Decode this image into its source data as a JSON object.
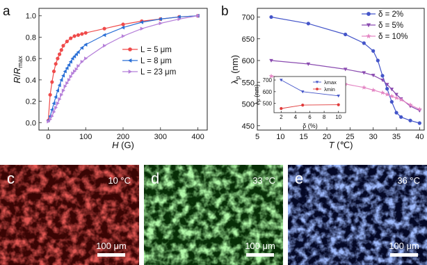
{
  "panels": {
    "a": "a",
    "b": "b",
    "c": "c",
    "d": "d",
    "e": "e"
  },
  "micrographs": [
    {
      "letter": "c",
      "temperature": "10 °C",
      "scale_bar": "100 μm",
      "color": "#c62828"
    },
    {
      "letter": "d",
      "temperature": "33 °C",
      "scale_bar": "100 μm",
      "color": "#2e9d2e"
    },
    {
      "letter": "e",
      "temperature": "36 °C",
      "scale_bar": "100 μm",
      "color": "#2f43b8"
    }
  ],
  "chart_data": [
    {
      "type": "line",
      "panel": "a",
      "xlabel": "H (G)",
      "ylabel": "R/Rmax",
      "xlim": [
        -25,
        425
      ],
      "ylim": [
        -0.07,
        1.07
      ],
      "xticks": [
        0,
        100,
        200,
        300,
        400
      ],
      "yticks": [
        0.0,
        0.2,
        0.4,
        0.6,
        0.8,
        1.0
      ],
      "xtick_labels": [
        "0",
        "100",
        "200",
        "300",
        "400"
      ],
      "ytick_labels": [
        "0.0",
        "0.2",
        "0.4",
        "0.6",
        "0.8",
        "1.0"
      ],
      "legend_position": "right",
      "series": [
        {
          "name": "L = 5 μm",
          "color": "#ef4a4a",
          "marker": "circle",
          "x": [
            0,
            5,
            10,
            15,
            20,
            25,
            30,
            35,
            40,
            50,
            60,
            70,
            80,
            90,
            100,
            150,
            200,
            250,
            300,
            350,
            400
          ],
          "y": [
            0.02,
            0.26,
            0.38,
            0.48,
            0.55,
            0.6,
            0.64,
            0.68,
            0.72,
            0.76,
            0.79,
            0.81,
            0.82,
            0.83,
            0.84,
            0.88,
            0.92,
            0.95,
            0.97,
            0.99,
            1.0
          ]
        },
        {
          "name": "L = 8 μm",
          "color": "#2a6fd6",
          "marker": "triangle-left",
          "x": [
            0,
            5,
            10,
            15,
            20,
            25,
            30,
            35,
            40,
            45,
            50,
            55,
            60,
            65,
            70,
            75,
            80,
            90,
            100,
            150,
            200,
            250,
            300,
            350,
            400
          ],
          "y": [
            0.02,
            0.06,
            0.12,
            0.18,
            0.24,
            0.3,
            0.35,
            0.4,
            0.44,
            0.48,
            0.51,
            0.54,
            0.57,
            0.6,
            0.62,
            0.64,
            0.66,
            0.7,
            0.73,
            0.82,
            0.89,
            0.94,
            0.97,
            0.99,
            1.0
          ]
        },
        {
          "name": "L = 23 μm",
          "color": "#b57fd9",
          "marker": "triangle-right",
          "x": [
            0,
            5,
            10,
            15,
            20,
            25,
            30,
            35,
            40,
            45,
            50,
            55,
            60,
            65,
            70,
            75,
            80,
            90,
            100,
            150,
            200,
            250,
            300,
            350,
            400
          ],
          "y": [
            0.01,
            0.03,
            0.06,
            0.1,
            0.14,
            0.18,
            0.22,
            0.26,
            0.3,
            0.34,
            0.37,
            0.4,
            0.43,
            0.46,
            0.48,
            0.5,
            0.53,
            0.57,
            0.6,
            0.72,
            0.81,
            0.88,
            0.93,
            0.97,
            1.0
          ]
        }
      ]
    },
    {
      "type": "line",
      "panel": "b",
      "xlabel": "T (℃)",
      "ylabel": "λp (nm)",
      "xlim": [
        5,
        41
      ],
      "ylim": [
        440,
        720
      ],
      "xticks": [
        5,
        10,
        15,
        20,
        25,
        30,
        35,
        40
      ],
      "yticks": [
        450,
        500,
        550,
        600,
        650,
        700
      ],
      "xtick_labels": [
        "5",
        "10",
        "15",
        "20",
        "25",
        "30",
        "35",
        "40"
      ],
      "ytick_labels": [
        "450",
        "500",
        "550",
        "600",
        "650",
        "700"
      ],
      "legend_position": "top-right",
      "series": [
        {
          "name": "δ = 2%",
          "color": "#4455c9",
          "marker": "circle",
          "x": [
            8,
            16,
            24,
            28,
            30,
            31,
            32,
            33,
            34,
            35,
            36,
            38,
            40
          ],
          "y": [
            700,
            685,
            660,
            640,
            622,
            600,
            565,
            535,
            505,
            480,
            470,
            462,
            456
          ]
        },
        {
          "name": "δ = 5%",
          "color": "#8a4bb0",
          "marker": "triangle-down",
          "x": [
            8,
            16,
            24,
            28,
            30,
            32,
            33,
            34,
            35,
            36,
            38,
            40
          ],
          "y": [
            600,
            592,
            580,
            572,
            566,
            555,
            545,
            534,
            522,
            512,
            495,
            485
          ]
        },
        {
          "name": "δ = 10%",
          "color": "#e486c4",
          "marker": "star",
          "x": [
            8,
            16,
            24,
            28,
            30,
            32,
            33,
            34,
            35,
            36,
            38,
            40
          ],
          "y": [
            564,
            556,
            546,
            538,
            532,
            526,
            522,
            518,
            514,
            510,
            498,
            488
          ]
        }
      ]
    },
    {
      "type": "line",
      "panel": "b-inset",
      "xlabel": "δ (%)",
      "ylabel": "λp (nm)",
      "xlim": [
        1,
        11
      ],
      "ylim": [
        420,
        730
      ],
      "xticks": [
        2,
        4,
        6,
        8,
        10
      ],
      "yticks": [
        500,
        600,
        700
      ],
      "xtick_labels": [
        "2",
        "4",
        "6",
        "8",
        "10"
      ],
      "ytick_labels": [
        "500",
        "600",
        "700"
      ],
      "legend_position": "top-right",
      "series": [
        {
          "name": "λmax",
          "color": "#4455c9",
          "marker": "triangle-down",
          "x": [
            2,
            5,
            10
          ],
          "y": [
            700,
            600,
            564
          ]
        },
        {
          "name": "λmin",
          "color": "#e03a3a",
          "marker": "circle",
          "x": [
            2,
            5,
            10
          ],
          "y": [
            456,
            485,
            488
          ]
        }
      ]
    }
  ]
}
